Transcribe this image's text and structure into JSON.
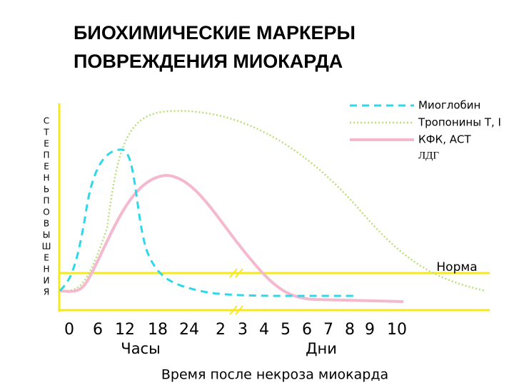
{
  "title": [
    "БИОХИМИЧЕСКИЕ  МАРКЕРЫ",
    "ПОВРЕЖДЕНИЯ МИОКАРДА"
  ],
  "y_axis_label": [
    "С",
    "Т",
    "Е",
    "П",
    "Е",
    "Н",
    "Ь",
    "П",
    "О",
    "В",
    "Ы",
    "Ш",
    "Е",
    "Н",
    "И",
    "Я"
  ],
  "legend": [
    "Миоглобин",
    "Тропонины Т, I",
    "КФК, АСТ",
    "ЛДГ"
  ],
  "norm_label": "Норма",
  "x_ticks": [
    "0",
    "6",
    "12",
    "18",
    "24",
    "2",
    "3",
    "4",
    "5",
    "6",
    "7",
    "8",
    "9",
    "10"
  ],
  "x_units": [
    "Часы",
    "Дни"
  ],
  "x_axis_title": "Время после некроза миокарда"
}
